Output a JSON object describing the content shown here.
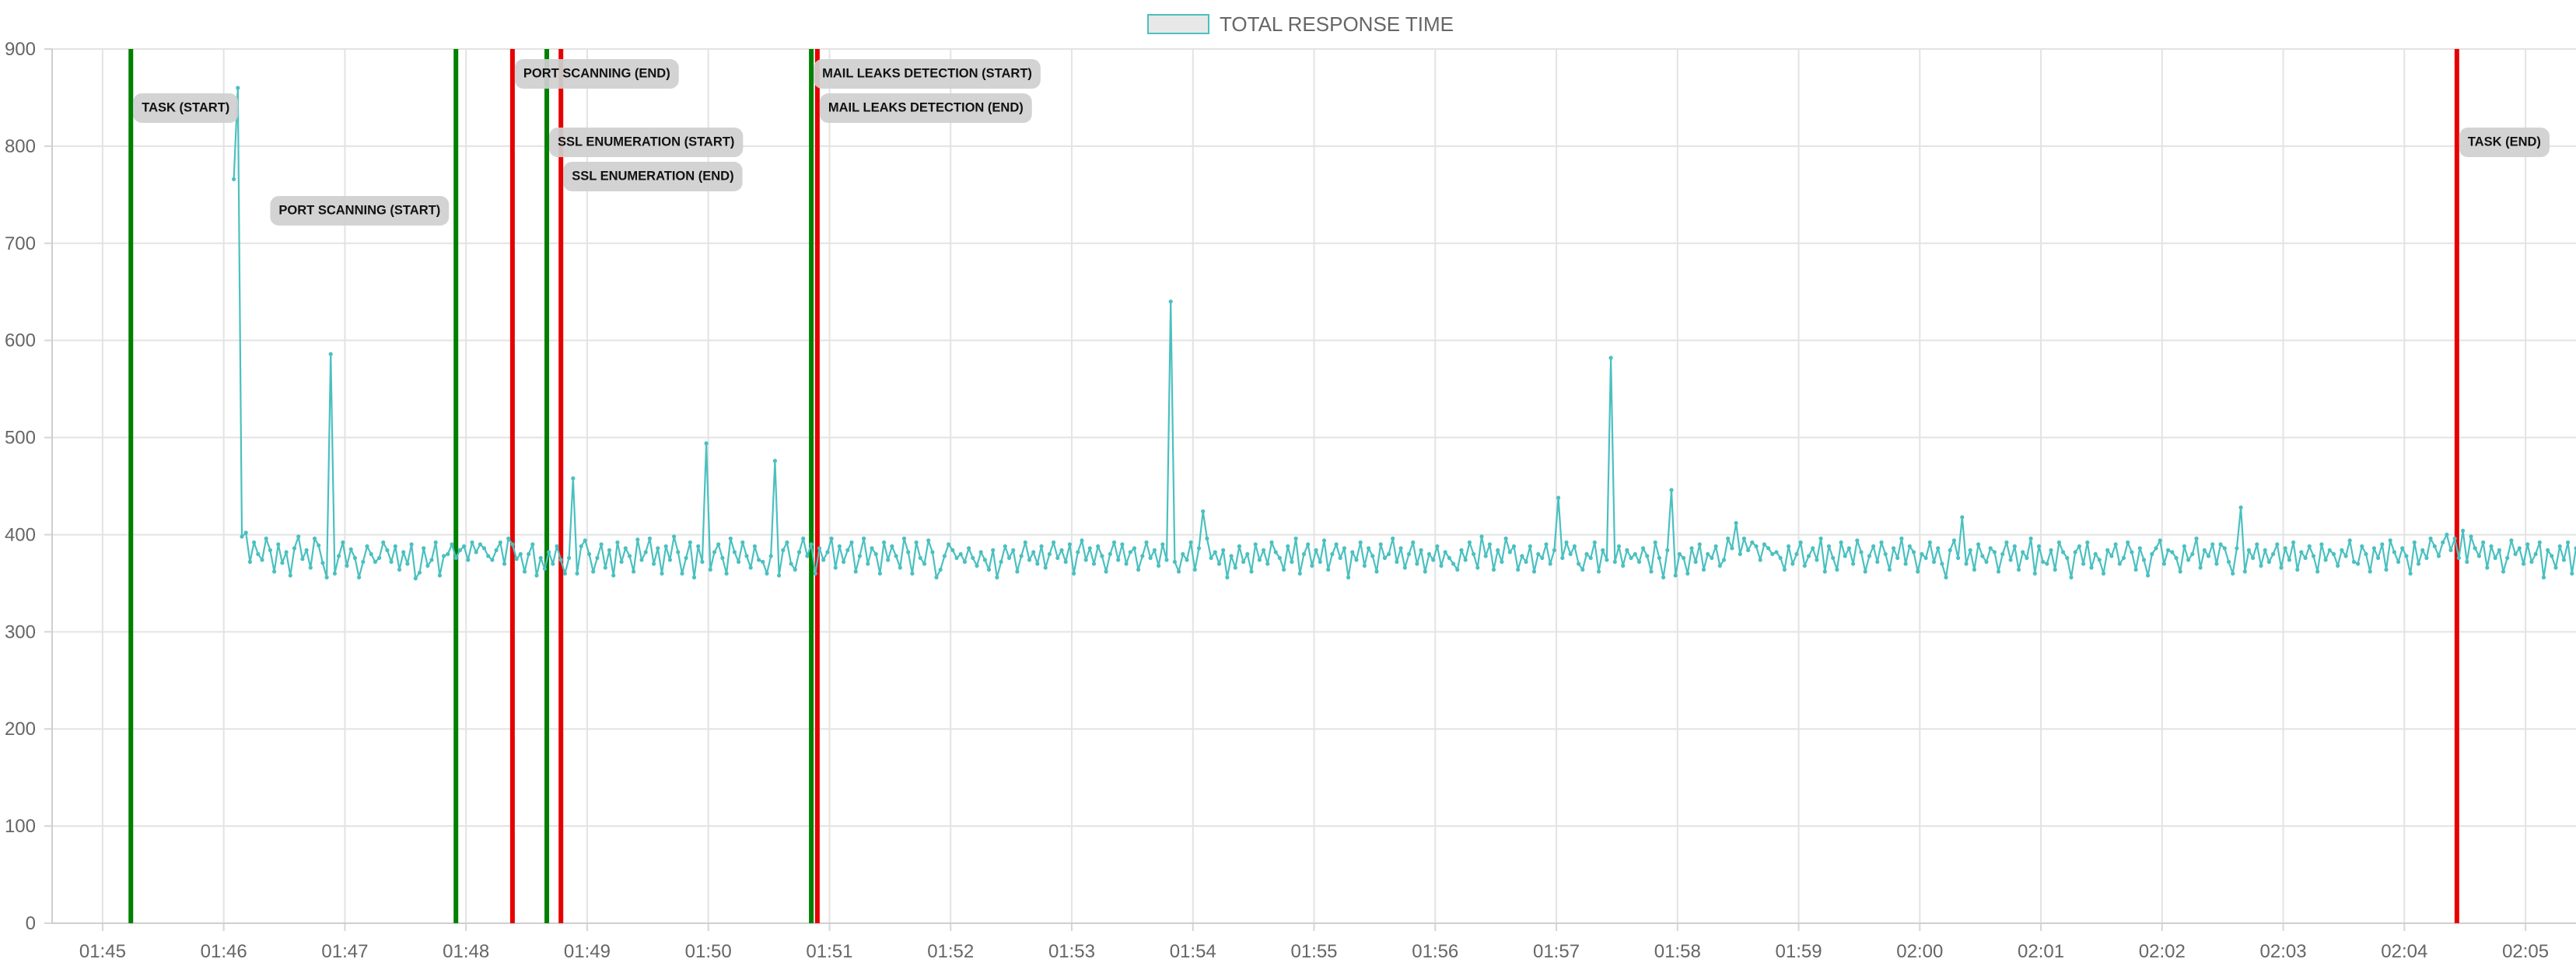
{
  "chart_data": {
    "type": "line",
    "legend": {
      "label": "TOTAL RESPONSE TIME",
      "position": "top-center",
      "color": "#4bc0c0",
      "box_fill": "#e8e8e8"
    },
    "series": [
      {
        "name": "TOTAL RESPONSE TIME",
        "color": "#4bc0c0",
        "start": "01:46:05",
        "interval_seconds": 2,
        "y": [
          766,
          860,
          398,
          402,
          372,
          392,
          380,
          374,
          396,
          384,
          362,
          390,
          371,
          382,
          358,
          386,
          398,
          375,
          384,
          366,
          396,
          389,
          371,
          356,
          586,
          360,
          378,
          392,
          368,
          385,
          376,
          356,
          372,
          388,
          380,
          372,
          376,
          392,
          384,
          372,
          388,
          364,
          382,
          370,
          390,
          355,
          361,
          386,
          368,
          374,
          392,
          358,
          378,
          380,
          390,
          376,
          384,
          388,
          374,
          392,
          382,
          390,
          386,
          378,
          374,
          384,
          392,
          370,
          396,
          390,
          375,
          380,
          362,
          380,
          390,
          358,
          376,
          365,
          382,
          370,
          388,
          374,
          360,
          376,
          458,
          360,
          388,
          394,
          380,
          362,
          376,
          390,
          366,
          384,
          358,
          392,
          372,
          386,
          378,
          362,
          395,
          374,
          382,
          396,
          370,
          386,
          360,
          388,
          374,
          398,
          382,
          360,
          376,
          392,
          356,
          388,
          372,
          494,
          364,
          382,
          390,
          376,
          360,
          396,
          382,
          372,
          392,
          378,
          366,
          388,
          374,
          372,
          360,
          378,
          476,
          358,
          384,
          392,
          370,
          364,
          382,
          396,
          378,
          390,
          360,
          386,
          374,
          382,
          396,
          366,
          388,
          372,
          384,
          392,
          362,
          378,
          396,
          370,
          386,
          380,
          360,
          392,
          374,
          388,
          378,
          366,
          396,
          382,
          360,
          392,
          376,
          370,
          394,
          382,
          356,
          364,
          378,
          390,
          384,
          376,
          380,
          372,
          386,
          376,
          368,
          382,
          374,
          364,
          384,
          356,
          372,
          388,
          376,
          384,
          362,
          378,
          392,
          374,
          382,
          370,
          388,
          366,
          380,
          392,
          376,
          384,
          372,
          390,
          360,
          382,
          394,
          374,
          386,
          370,
          388,
          378,
          362,
          380,
          392,
          374,
          390,
          370,
          382,
          386,
          364,
          378,
          392,
          376,
          384,
          368,
          390,
          374,
          640,
          372,
          362,
          380,
          374,
          392,
          364,
          386,
          424,
          396,
          376,
          382,
          370,
          384,
          356,
          378,
          366,
          388,
          372,
          380,
          362,
          390,
          374,
          384,
          370,
          392,
          382,
          376,
          364,
          388,
          372,
          396,
          360,
          380,
          390,
          368,
          384,
          372,
          394,
          364,
          380,
          390,
          376,
          386,
          356,
          382,
          374,
          392,
          368,
          386,
          378,
          362,
          390,
          376,
          380,
          396,
          372,
          386,
          366,
          380,
          392,
          370,
          384,
          362,
          380,
          374,
          388,
          368,
          382,
          376,
          370,
          364,
          384,
          374,
          392,
          380,
          366,
          398,
          378,
          390,
          364,
          384,
          372,
          396,
          382,
          388,
          364,
          378,
          372,
          388,
          362,
          380,
          376,
          390,
          370,
          384,
          438,
          376,
          392,
          380,
          388,
          370,
          364,
          380,
          376,
          392,
          362,
          384,
          374,
          582,
          372,
          388,
          368,
          384,
          376,
          380,
          372,
          386,
          378,
          362,
          392,
          376,
          356,
          384,
          446,
          358,
          380,
          376,
          360,
          386,
          372,
          390,
          364,
          380,
          376,
          388,
          368,
          374,
          396,
          386,
          412,
          380,
          396,
          384,
          392,
          388,
          374,
          390,
          386,
          380,
          382,
          376,
          364,
          388,
          370,
          380,
          392,
          368,
          378,
          386,
          374,
          396,
          362,
          388,
          376,
          364,
          392,
          378,
          386,
          370,
          394,
          382,
          362,
          378,
          388,
          372,
          392,
          380,
          364,
          386,
          376,
          396,
          370,
          388,
          382,
          362,
          380,
          376,
          392,
          372,
          386,
          370,
          356,
          384,
          394,
          376,
          418,
          370,
          384,
          364,
          390,
          378,
          372,
          386,
          382,
          362,
          380,
          392,
          374,
          388,
          364,
          382,
          376,
          396,
          360,
          388,
          372,
          370,
          384,
          364,
          392,
          382,
          376,
          356,
          382,
          388,
          370,
          392,
          366,
          380,
          374,
          360,
          384,
          378,
          390,
          370,
          376,
          392,
          382,
          364,
          386,
          374,
          358,
          380,
          386,
          394,
          370,
          384,
          382,
          376,
          362,
          388,
          374,
          380,
          396,
          366,
          384,
          378,
          390,
          370,
          390,
          386,
          372,
          360,
          386,
          428,
          362,
          384,
          376,
          390,
          368,
          384,
          372,
          380,
          390,
          366,
          386,
          374,
          392,
          364,
          382,
          376,
          388,
          378,
          362,
          390,
          374,
          384,
          380,
          368,
          384,
          378,
          394,
          372,
          370,
          388,
          380,
          362,
          386,
          376,
          390,
          364,
          394,
          382,
          372,
          386,
          378,
          360,
          392,
          370,
          384,
          376,
          396,
          388,
          378,
          392,
          400,
          384,
          396,
          376,
          404,
          372,
          398,
          386,
          378,
          392,
          366,
          388,
          376,
          384,
          362,
          376,
          394,
          380,
          386,
          370,
          390,
          372,
          380,
          392,
          356,
          384,
          378,
          366,
          388,
          374,
          392,
          360,
          386,
          378,
          384,
          372,
          364,
          390,
          382,
          376,
          394,
          372,
          386,
          360,
          380,
          392,
          388,
          370,
          394,
          384,
          376,
          392,
          388,
          372,
          396,
          382,
          384,
          374,
          390,
          378,
          384,
          370,
          390,
          380,
          370,
          378,
          362,
          388,
          376,
          392,
          372,
          384,
          366,
          380,
          388,
          384,
          390
        ]
      }
    ],
    "x_axis": {
      "min": "01:44:35",
      "max": "02:05:25",
      "ticks": [
        "01:45",
        "01:46",
        "01:47",
        "01:48",
        "01:49",
        "01:50",
        "01:51",
        "01:52",
        "01:53",
        "01:54",
        "01:55",
        "01:56",
        "01:57",
        "01:58",
        "01:59",
        "02:00",
        "02:01",
        "02:02",
        "02:03",
        "02:04",
        "02:05"
      ]
    },
    "y_axis": {
      "min": 0,
      "max": 900,
      "step": 100
    },
    "grid": true,
    "markers": [
      {
        "time": "01:45:14",
        "color": "#008000",
        "label": "TASK (START)"
      },
      {
        "time": "01:47:55",
        "color": "#008000",
        "label": "PORT SCANNING (START)"
      },
      {
        "time": "01:48:23",
        "color": "#e60000",
        "label": "PORT SCANNING (END)"
      },
      {
        "time": "01:48:40",
        "color": "#008000",
        "label": "SSL ENUMERATION (START)"
      },
      {
        "time": "01:48:47",
        "color": "#e60000",
        "label": "SSL ENUMERATION (END)"
      },
      {
        "time": "01:50:51",
        "color": "#008000",
        "label": "MAIL LEAKS DETECTION (START)"
      },
      {
        "time": "01:50:54",
        "color": "#e60000",
        "label": "MAIL LEAKS DETECTION (END)"
      },
      {
        "time": "02:04:26",
        "color": "#e60000",
        "label": "TASK (END)"
      }
    ]
  }
}
